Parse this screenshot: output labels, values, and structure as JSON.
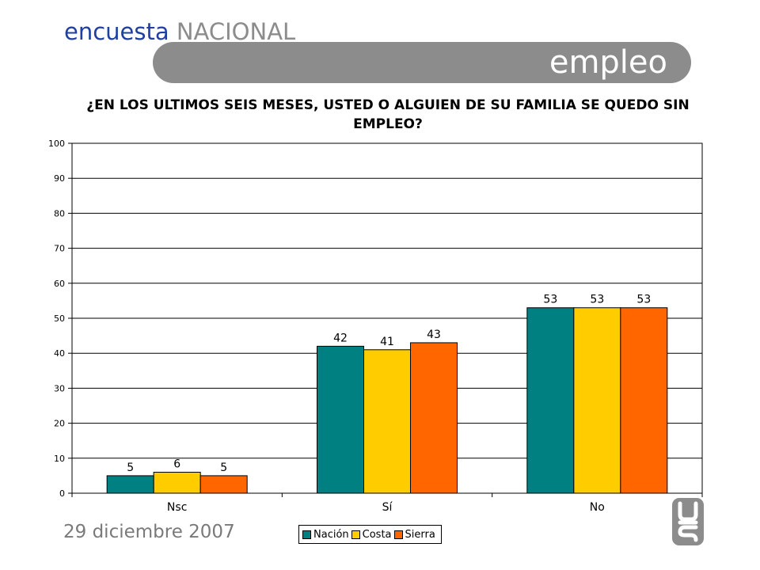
{
  "header": {
    "brand_part1": "encuesta",
    "brand_part2": "NACIONAL",
    "banner_text": "empleo"
  },
  "footer": {
    "date": "29 diciembre 2007"
  },
  "colors": {
    "brand_blue": "#1f3fa3",
    "banner_gray": "#8c8c8c",
    "Nación": "#008080",
    "Costa": "#ffcc00",
    "Sierra": "#ff6600"
  },
  "logo": {
    "icon": "brand-logo-icon"
  },
  "chart_data": {
    "type": "bar",
    "title": "¿EN LOS ULTIMOS SEIS MESES, USTED O ALGUIEN DE SU FAMILIA SE QUEDO SIN EMPLEO?",
    "categories": [
      "Nsc",
      "Sí",
      "No"
    ],
    "series": [
      {
        "name": "Nación",
        "values": [
          5,
          42,
          53
        ]
      },
      {
        "name": "Costa",
        "values": [
          6,
          41,
          53
        ]
      },
      {
        "name": "Sierra",
        "values": [
          5,
          43,
          53
        ]
      }
    ],
    "ylim": [
      0,
      100
    ],
    "yticks": [
      0,
      10,
      20,
      30,
      40,
      50,
      60,
      70,
      80,
      90,
      100
    ],
    "grid": true,
    "legend": "bottom",
    "data_labels": true
  }
}
